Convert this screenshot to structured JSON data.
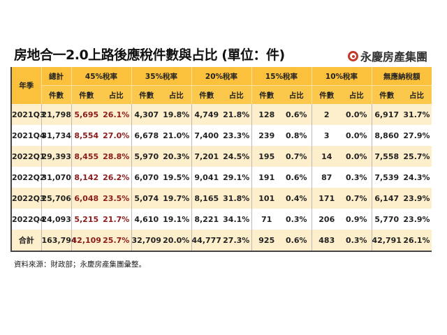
{
  "title": "房地合一2.0上路後應稅件數與占比 (單位：件)",
  "logo_text": "永慶房產集團",
  "colors": {
    "header": "#fbc03c",
    "stripe": "#fdefcc",
    "highlight": "#8b1a1a",
    "logo": "#c0392b"
  },
  "table": {
    "year_header": "年季",
    "groups": [
      "總計",
      "45%稅率",
      "35%稅率",
      "20%稅率",
      "15%稅率",
      "10%稅率",
      "無應納稅額"
    ],
    "count_label": "件數",
    "share_label": "占比",
    "rows": [
      {
        "period": "2021Q3",
        "cells": [
          "21,798",
          "5,695",
          "26.1%",
          "4,307",
          "19.8%",
          "4,749",
          "21.8%",
          "128",
          "0.6%",
          "2",
          "0.0%",
          "6,917",
          "31.7%"
        ]
      },
      {
        "period": "2021Q4",
        "cells": [
          "31,734",
          "8,554",
          "27.0%",
          "6,678",
          "21.0%",
          "7,400",
          "23.3%",
          "239",
          "0.8%",
          "3",
          "0.0%",
          "8,860",
          "27.9%"
        ]
      },
      {
        "period": "2022Q1",
        "cells": [
          "29,393",
          "8,455",
          "28.8%",
          "5,970",
          "20.3%",
          "7,201",
          "24.5%",
          "195",
          "0.7%",
          "14",
          "0.0%",
          "7,558",
          "25.7%"
        ]
      },
      {
        "period": "2022Q2",
        "cells": [
          "31,070",
          "8,142",
          "26.2%",
          "6,070",
          "19.5%",
          "9,041",
          "29.1%",
          "191",
          "0.6%",
          "87",
          "0.3%",
          "7,539",
          "24.3%"
        ]
      },
      {
        "period": "2022Q3",
        "cells": [
          "25,706",
          "6,048",
          "23.5%",
          "5,074",
          "19.7%",
          "8,165",
          "31.8%",
          "101",
          "0.4%",
          "171",
          "0.7%",
          "6,147",
          "23.9%"
        ]
      },
      {
        "period": "2022Q4",
        "cells": [
          "24,093",
          "5,215",
          "21.7%",
          "4,610",
          "19.1%",
          "8,221",
          "34.1%",
          "71",
          "0.3%",
          "206",
          "0.9%",
          "5,770",
          "23.9%"
        ]
      },
      {
        "period": "合計",
        "cells": [
          "163,794",
          "42,109",
          "25.7%",
          "32,709",
          "20.0%",
          "44,777",
          "27.3%",
          "925",
          "0.6%",
          "483",
          "0.3%",
          "42,791",
          "26.1%"
        ]
      }
    ]
  },
  "source": "資料來源：財政部；永慶房產集團彙整。"
}
